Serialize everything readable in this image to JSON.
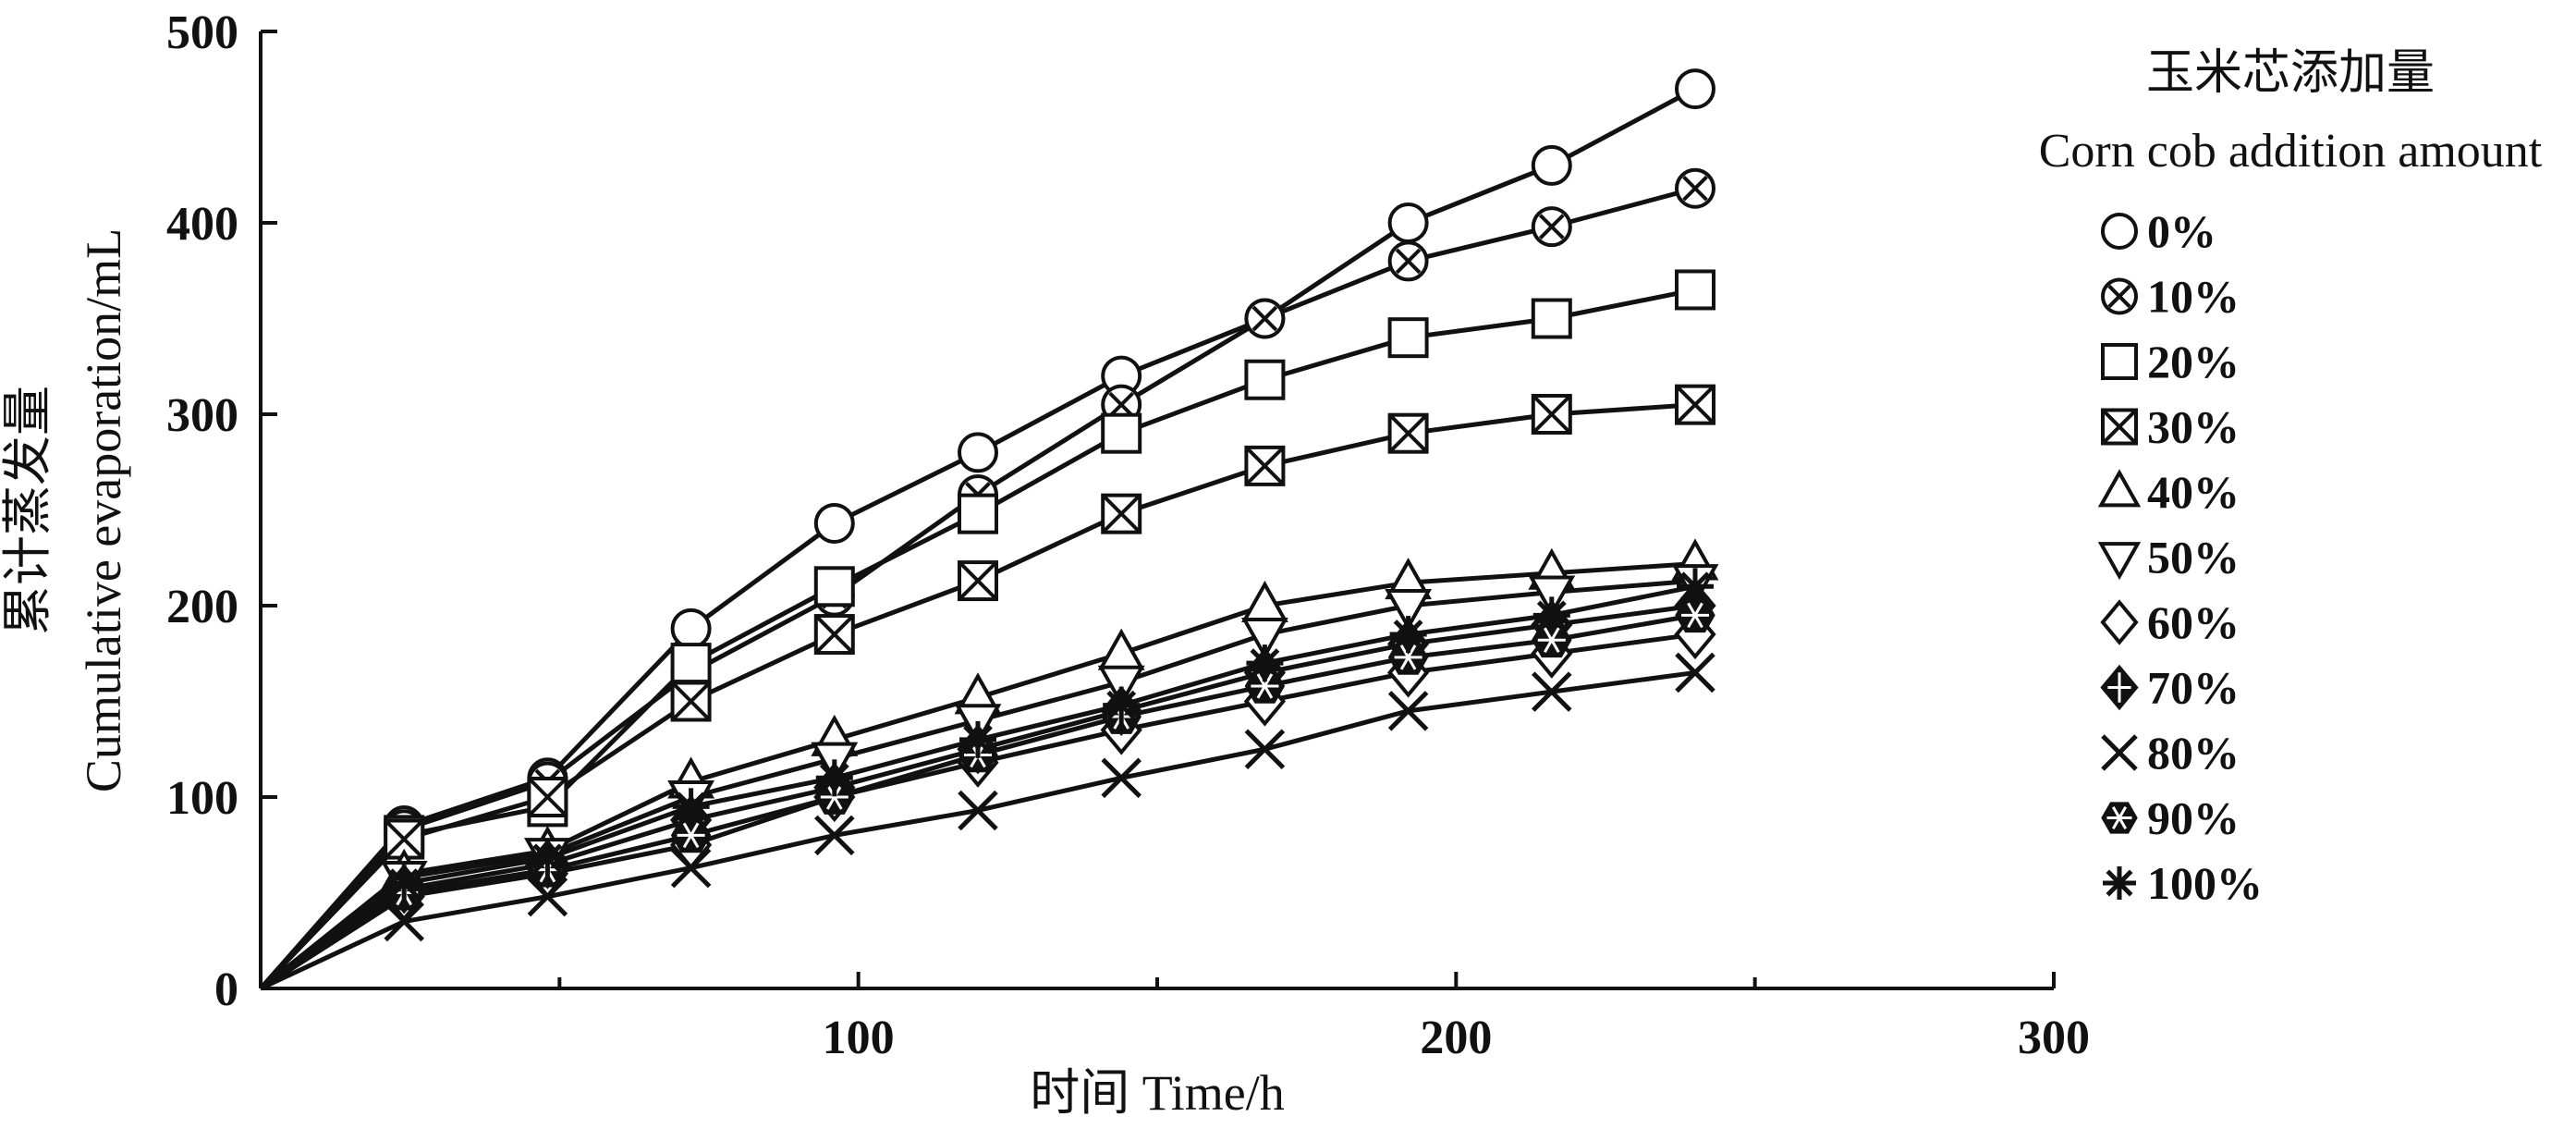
{
  "chart_data": {
    "type": "line",
    "xlabel": "时间 Time/h",
    "ylabel_cn": "累计蒸发量",
    "ylabel_en": "Cumulative evaporation/mL",
    "xlim": [
      0,
      300
    ],
    "ylim": [
      0,
      500
    ],
    "xticks": [
      100,
      200,
      300
    ],
    "yticks": [
      0,
      100,
      200,
      300,
      400,
      500
    ],
    "grid": false,
    "legend": {
      "title_cn": "玉米芯添加量",
      "title_en": "Corn cob addition amount",
      "placement": "right"
    },
    "x": [
      0,
      24,
      48,
      72,
      96,
      120,
      144,
      168,
      192,
      216,
      240
    ],
    "series": [
      {
        "name": "0%",
        "marker": "circle",
        "values": [
          0,
          85,
          110,
          188,
          243,
          280,
          320,
          350,
          400,
          430,
          470
        ]
      },
      {
        "name": "10%",
        "marker": "circle-x",
        "values": [
          0,
          83,
          108,
          165,
          205,
          258,
          305,
          350,
          380,
          398,
          418
        ]
      },
      {
        "name": "20%",
        "marker": "square",
        "values": [
          0,
          80,
          95,
          170,
          210,
          248,
          290,
          318,
          340,
          350,
          365
        ]
      },
      {
        "name": "30%",
        "marker": "square-x",
        "values": [
          0,
          78,
          100,
          150,
          185,
          213,
          248,
          273,
          290,
          300,
          305
        ]
      },
      {
        "name": "40%",
        "marker": "triangle-up",
        "values": [
          0,
          60,
          72,
          108,
          130,
          152,
          175,
          200,
          212,
          217,
          222
        ]
      },
      {
        "name": "50%",
        "marker": "triangle-down",
        "values": [
          0,
          58,
          70,
          100,
          120,
          140,
          160,
          185,
          200,
          207,
          213
        ]
      },
      {
        "name": "60%",
        "marker": "diamond",
        "values": [
          0,
          48,
          60,
          75,
          100,
          118,
          135,
          150,
          165,
          175,
          185
        ]
      },
      {
        "name": "70%",
        "marker": "diamond-plus",
        "values": [
          0,
          52,
          65,
          88,
          105,
          125,
          145,
          165,
          180,
          190,
          200
        ]
      },
      {
        "name": "80%",
        "marker": "x",
        "values": [
          0,
          35,
          48,
          63,
          80,
          93,
          110,
          125,
          145,
          155,
          165
        ]
      },
      {
        "name": "90%",
        "marker": "hexagon-asterisk",
        "values": [
          0,
          50,
          62,
          80,
          100,
          122,
          142,
          158,
          173,
          182,
          195
        ]
      },
      {
        "name": "100%",
        "marker": "asterisk",
        "values": [
          0,
          55,
          68,
          95,
          110,
          130,
          148,
          170,
          185,
          195,
          210
        ]
      }
    ]
  }
}
